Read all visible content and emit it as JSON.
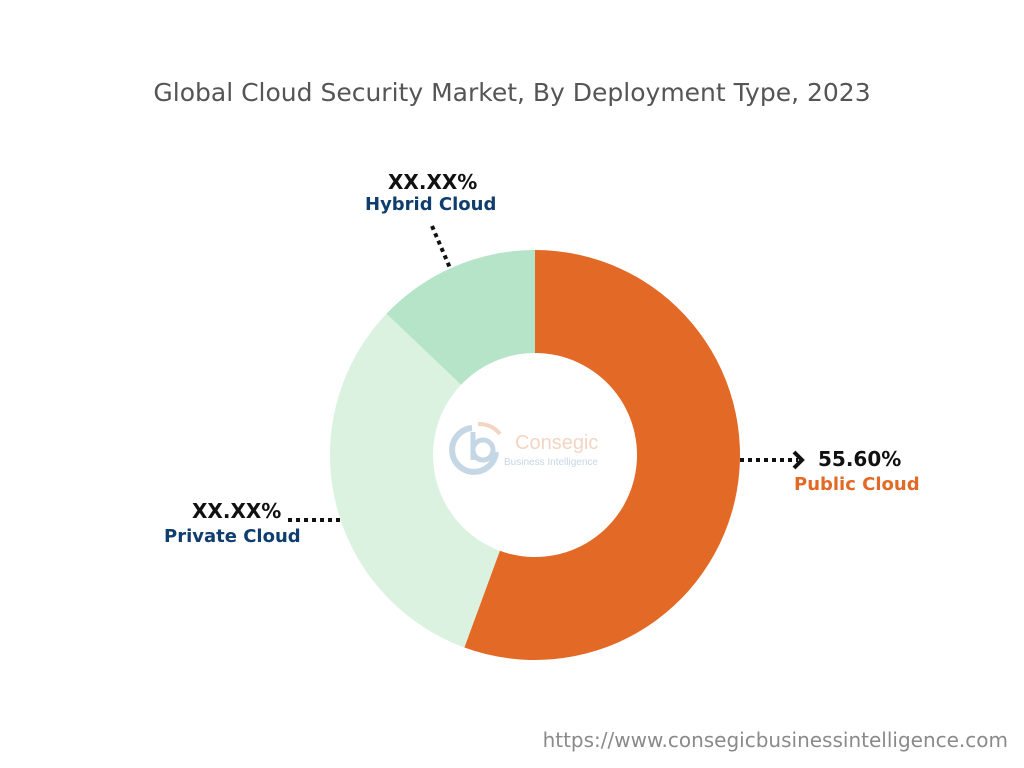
{
  "chart_data": {
    "type": "pie",
    "title": "Global Cloud Security Market, By Deployment Type, 2023",
    "donut": true,
    "slices": [
      {
        "name": "Public Cloud",
        "value": 55.6,
        "label": "55.60%",
        "color": "#E36A26",
        "label_color": "#E36A26"
      },
      {
        "name": "Private Cloud",
        "value": 31.5,
        "label": "XX.XX%",
        "color": "#DAF2DF",
        "label_color": "#0F3D6E"
      },
      {
        "name": "Hybrid Cloud",
        "value": 12.9,
        "label": "XX.XX%",
        "color": "#B6E4C8",
        "label_color": "#0F3D6E"
      }
    ]
  },
  "watermark": {
    "brand": "Consegic",
    "tagline": "Business Intelligence"
  },
  "footer_url": "https://www.consegicbusinessintelligence.com"
}
